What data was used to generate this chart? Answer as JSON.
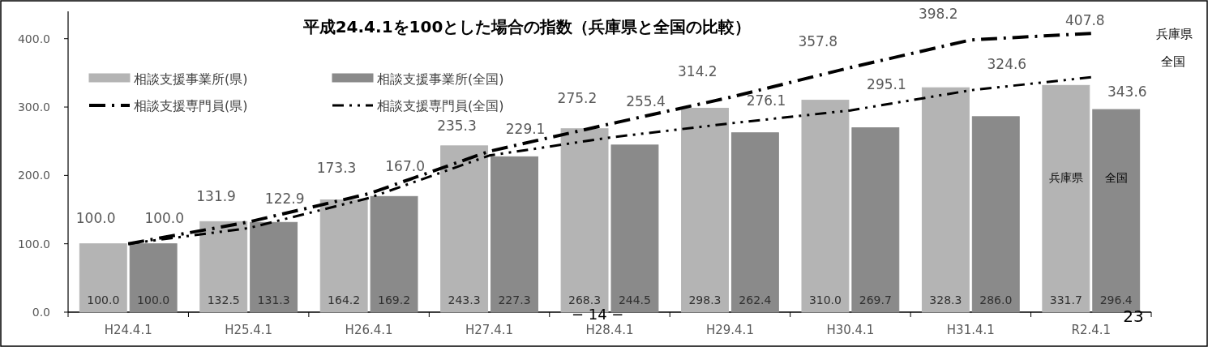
{
  "chart_data": {
    "type": "bar",
    "title": "平成24.4.1を100とした場合の指数（兵庫県と全国の比較）",
    "categories": [
      "H24.4.1",
      "H25.4.1",
      "H26.4.1",
      "H27.4.1",
      "H28.4.1",
      "H29.4.1",
      "H30.4.1",
      "H31.4.1",
      "R2.4.1"
    ],
    "series": [
      {
        "name": "相談支援事業所(県)",
        "color": "#b4b4b4",
        "values": [
          100.0,
          132.5,
          164.2,
          243.3,
          268.3,
          298.3,
          310.0,
          328.3,
          331.7
        ],
        "value_labels": [
          "100.0",
          "132.5",
          "164.2",
          "243.3",
          "268.3",
          "298.3",
          "310.0",
          "328.3",
          "331.7"
        ]
      },
      {
        "name": "相談支援事業所(全国)",
        "color": "#8a8a8a",
        "values": [
          100.0,
          131.3,
          169.2,
          227.3,
          244.5,
          262.4,
          269.7,
          286.0,
          296.4
        ],
        "value_labels": [
          "100.0",
          "131.3",
          "169.2",
          "227.3",
          "244.5",
          "262.4",
          "269.7",
          "286.0",
          "296.4"
        ]
      },
      {
        "name": "相談支援専門員(県)",
        "type": "line",
        "color": "#000000",
        "line_style": "dashed",
        "values": [
          100.0,
          131.9,
          173.3,
          235.3,
          275.2,
          314.2,
          357.8,
          398.2,
          407.8
        ],
        "value_labels": [
          "100.0",
          "131.9",
          "173.3",
          "235.3",
          "275.2",
          "314.2",
          "357.8",
          "398.2",
          "407.8"
        ]
      },
      {
        "name": "相談支援専門員(全国)",
        "type": "line",
        "color": "#000000",
        "line_style": "dotted",
        "values": [
          100.0,
          122.9,
          167.0,
          229.1,
          255.4,
          276.1,
          295.1,
          324.6,
          343.6
        ],
        "value_labels": [
          "100.0",
          "122.9",
          "167.0",
          "229.1",
          "255.4",
          "276.1",
          "295.1",
          "324.6",
          "343.6"
        ]
      }
    ],
    "ylim": [
      0,
      440
    ],
    "yticks": [
      {
        "value": 0,
        "label": "0.0"
      },
      {
        "value": 100,
        "label": "100.0"
      },
      {
        "value": 200,
        "label": "200.0"
      },
      {
        "value": 300,
        "label": "300.0"
      },
      {
        "value": 400,
        "label": "400.0"
      }
    ],
    "grid": false,
    "legend": "top left",
    "annotations": [
      "兵庫県",
      "全国",
      "兵庫県",
      "全国",
      "− 14 −",
      "23"
    ]
  }
}
